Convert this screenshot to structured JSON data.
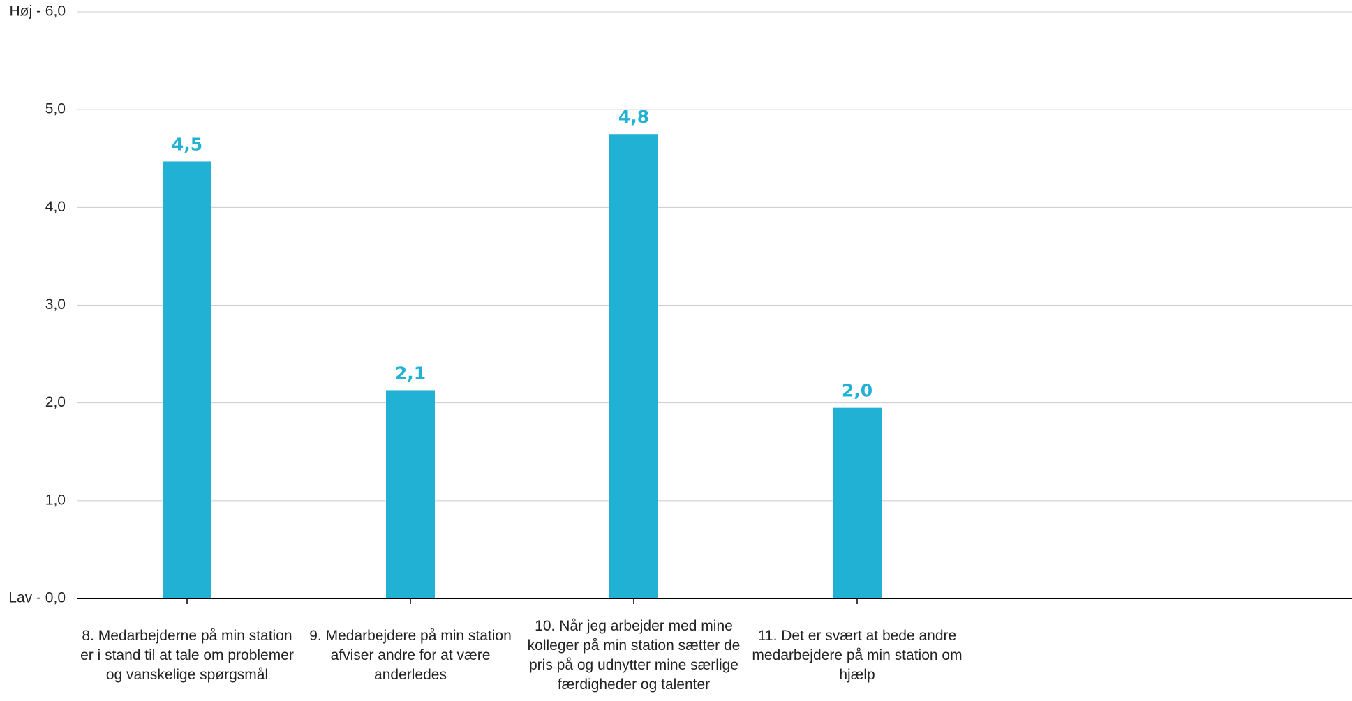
{
  "chart_data": {
    "type": "bar",
    "categories": [
      "8. Medarbejderne på min station er i stand til at tale om problemer og vanskelige spørgsmål",
      "9. Medarbejdere på min station afviser andre for at være anderledes",
      "10. Når jeg arbejder med mine kolleger på min station sætter de pris på og udnytter mine særlige færdigheder og talenter",
      "11. Det er svært at bede andre medarbejdere på min station om hjælp"
    ],
    "values": [
      4.47,
      2.13,
      4.75,
      1.95
    ],
    "value_labels": [
      "4,5",
      "2,1",
      "4,8",
      "2,0"
    ],
    "ylim": [
      0,
      6
    ],
    "y_ticks": [
      {
        "value": 0,
        "label": "Lav - 0,0"
      },
      {
        "value": 1,
        "label": "1,0"
      },
      {
        "value": 2,
        "label": "2,0"
      },
      {
        "value": 3,
        "label": "3,0"
      },
      {
        "value": 4,
        "label": "4,0"
      },
      {
        "value": 5,
        "label": "5,0"
      },
      {
        "value": 6,
        "label": "Høj - 6,0"
      }
    ],
    "grid": true,
    "legend": "none",
    "bar_color": "#21B1D4",
    "label_color": "#21B1D4",
    "grid_color": "#cccccc",
    "axis_color": "#000000"
  }
}
